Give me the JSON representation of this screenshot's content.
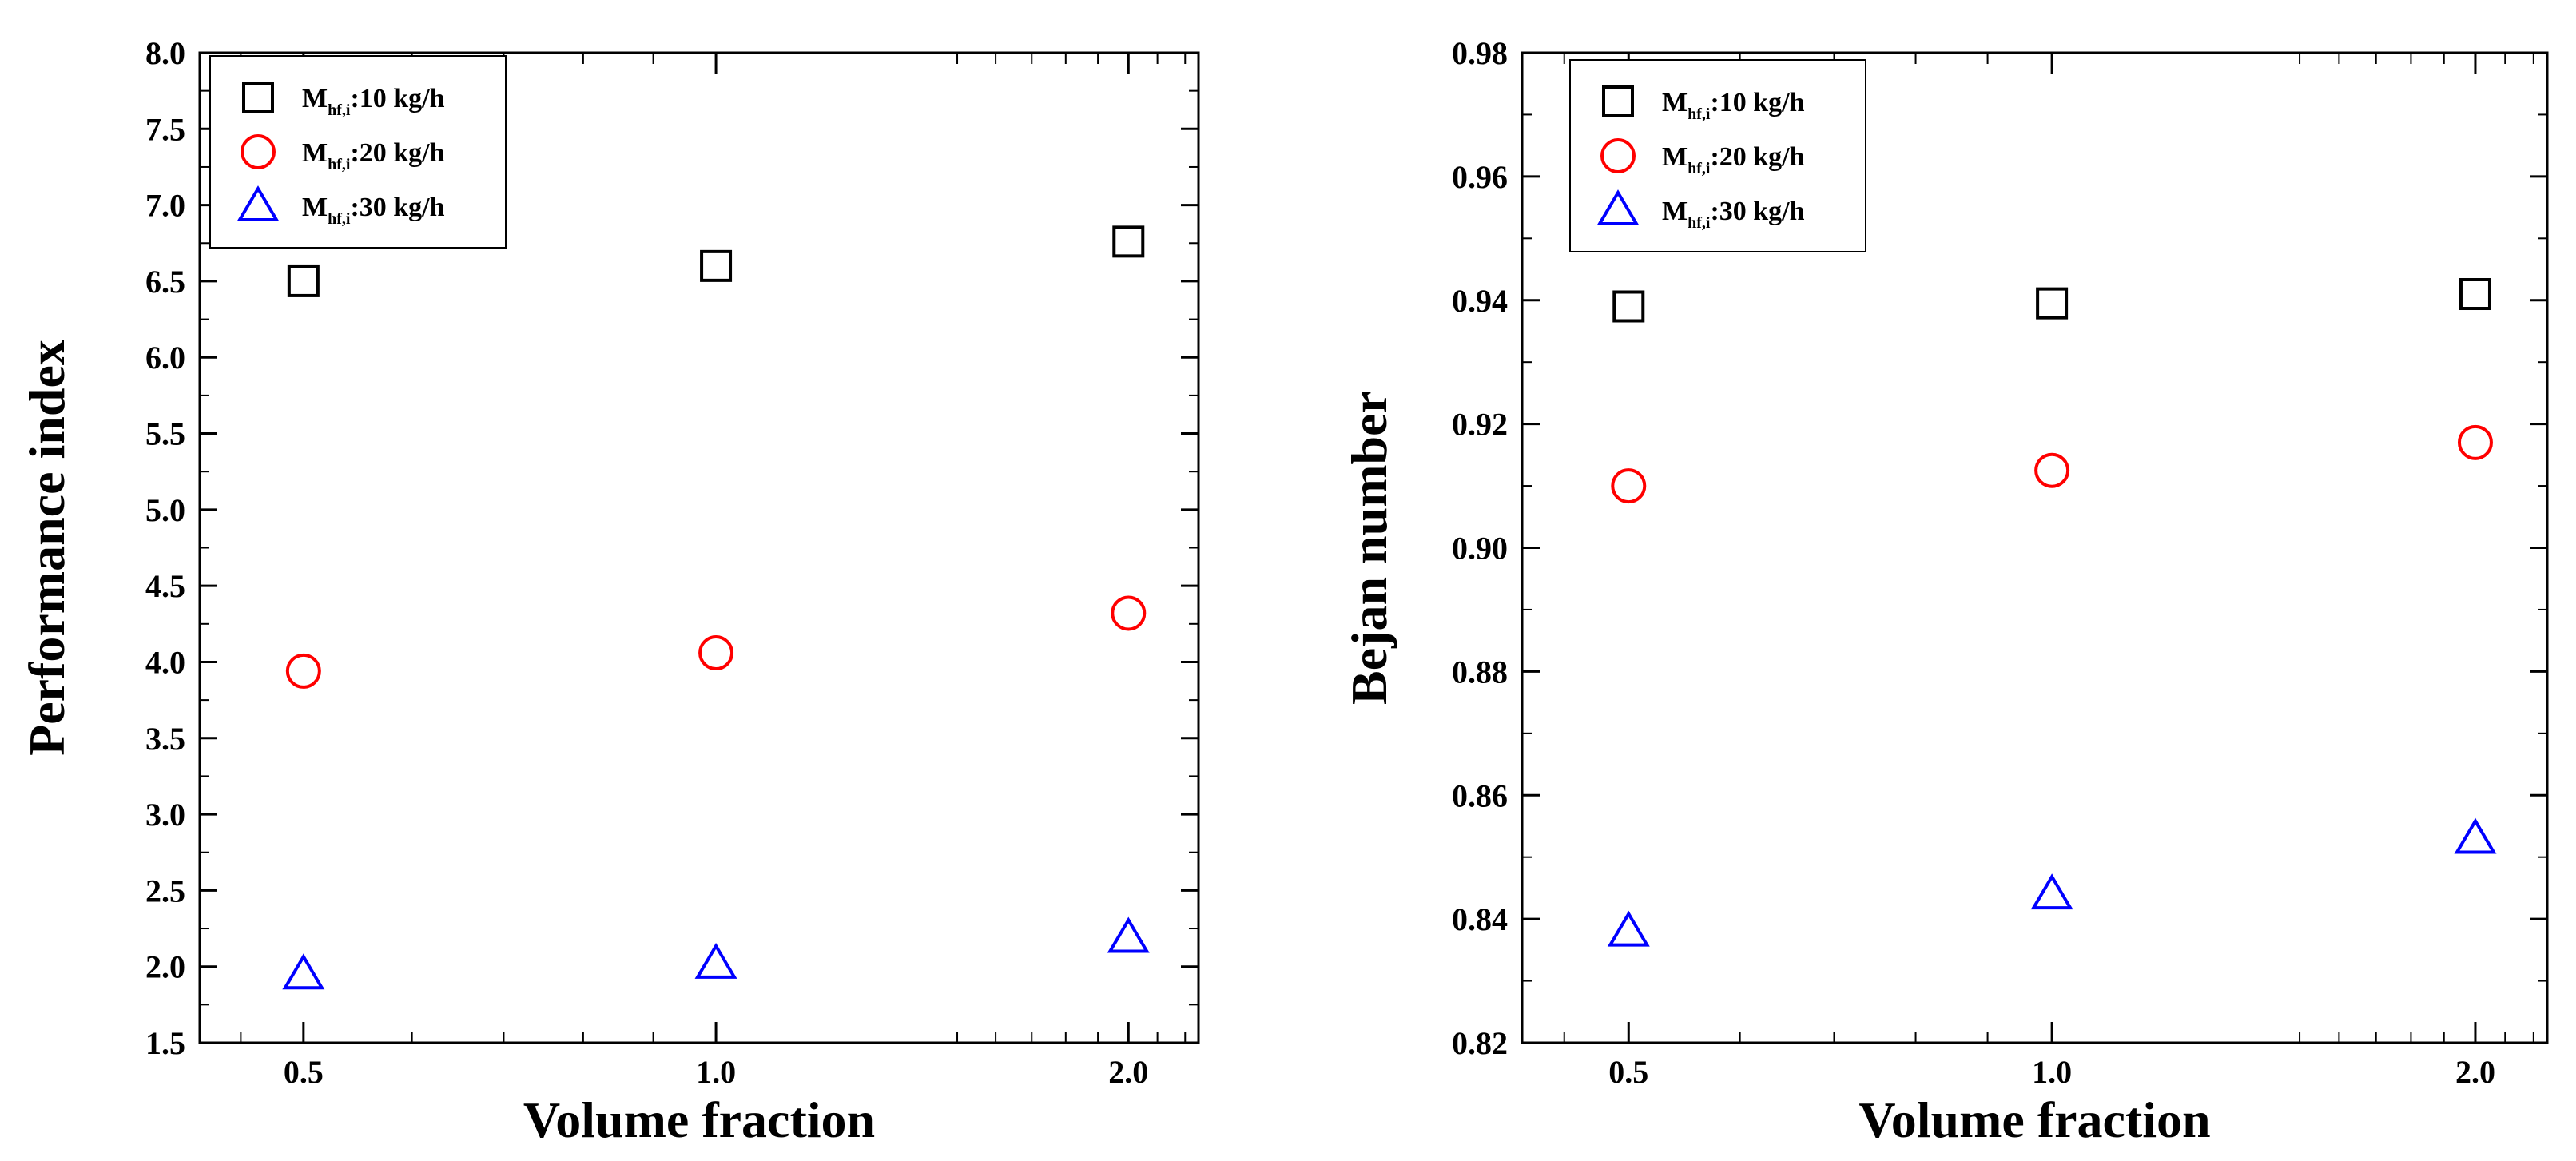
{
  "chart_data": [
    {
      "type": "scatter",
      "title": "",
      "xlabel": "Volume fraction",
      "ylabel": "Performance index",
      "x_scale": "log",
      "xticks": [
        "0.5",
        "1.0",
        "2.0"
      ],
      "xtick_values": [
        0.5,
        1.0,
        2.0
      ],
      "ylim": [
        1.5,
        8.0
      ],
      "yticks": [
        "1.5",
        "2.0",
        "2.5",
        "3.0",
        "3.5",
        "4.0",
        "4.5",
        "5.0",
        "5.5",
        "6.0",
        "6.5",
        "7.0",
        "7.5",
        "8.0"
      ],
      "ytick_values": [
        1.5,
        2.0,
        2.5,
        3.0,
        3.5,
        4.0,
        4.5,
        5.0,
        5.5,
        6.0,
        6.5,
        7.0,
        7.5,
        8.0
      ],
      "legend_position": "top-left",
      "series": [
        {
          "name": "M_hf,i:10 kg/h",
          "label_main": "M",
          "label_sub": "hf,i",
          "label_rest": ":10 kg/h",
          "marker": "square",
          "color": "#000000",
          "x": [
            0.5,
            1.0,
            2.0
          ],
          "values": [
            6.5,
            6.6,
            6.76
          ]
        },
        {
          "name": "M_hf,i:20 kg/h",
          "label_main": "M",
          "label_sub": "hf,i",
          "label_rest": ":20 kg/h",
          "marker": "circle",
          "color": "#ff0000",
          "x": [
            0.5,
            1.0,
            2.0
          ],
          "values": [
            3.94,
            4.06,
            4.32
          ]
        },
        {
          "name": "M_hf,i:30 kg/h",
          "label_main": "M",
          "label_sub": "hf,i",
          "label_rest": ":30 kg/h",
          "marker": "triangle",
          "color": "#0000ff",
          "x": [
            0.5,
            1.0,
            2.0
          ],
          "values": [
            1.95,
            2.02,
            2.19
          ]
        }
      ]
    },
    {
      "type": "scatter",
      "title": "",
      "xlabel": "Volume fraction",
      "ylabel": "Bejan number",
      "x_scale": "log",
      "xticks": [
        "0.5",
        "1.0",
        "2.0"
      ],
      "xtick_values": [
        0.5,
        1.0,
        2.0
      ],
      "ylim": [
        0.82,
        0.98
      ],
      "yticks": [
        "0.82",
        "0.84",
        "0.86",
        "0.88",
        "0.90",
        "0.92",
        "0.94",
        "0.96",
        "0.98"
      ],
      "ytick_values": [
        0.82,
        0.84,
        0.86,
        0.88,
        0.9,
        0.92,
        0.94,
        0.96,
        0.98
      ],
      "legend_position": "top-left",
      "series": [
        {
          "name": "M_hf,i:10 kg/h",
          "label_main": "M",
          "label_sub": "hf,i",
          "label_rest": ":10 kg/h",
          "marker": "square",
          "color": "#000000",
          "x": [
            0.5,
            1.0,
            2.0
          ],
          "values": [
            0.939,
            0.9395,
            0.941
          ]
        },
        {
          "name": "M_hf,i:20 kg/h",
          "label_main": "M",
          "label_sub": "hf,i",
          "label_rest": ":20 kg/h",
          "marker": "circle",
          "color": "#ff0000",
          "x": [
            0.5,
            1.0,
            2.0
          ],
          "values": [
            0.91,
            0.9125,
            0.917
          ]
        },
        {
          "name": "M_hf,i:30 kg/h",
          "label_main": "M",
          "label_sub": "hf,i",
          "label_rest": ":30 kg/h",
          "marker": "triangle",
          "color": "#0000ff",
          "x": [
            0.5,
            1.0,
            2.0
          ],
          "values": [
            0.838,
            0.844,
            0.853
          ]
        }
      ]
    }
  ]
}
